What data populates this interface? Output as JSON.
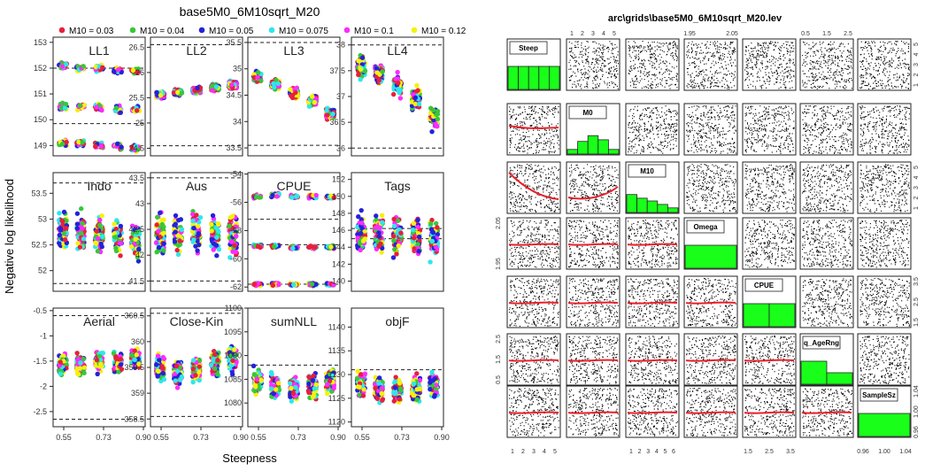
{
  "left": {
    "title": "base5M0_6M10sqrt_M20",
    "xlabel": "Steepness",
    "ylabel": "Negative log likelihood",
    "xticks": [
      "0.55",
      "0.73",
      "0.90"
    ],
    "legend": [
      {
        "label": "M10 = 0.03",
        "color": "#e8203a"
      },
      {
        "label": "M10 = 0.04",
        "color": "#37c837"
      },
      {
        "label": "M10 = 0.05",
        "color": "#2323d8"
      },
      {
        "label": "M10 = 0.075",
        "color": "#2ee6ee"
      },
      {
        "label": "M10 = 0.1",
        "color": "#ff2bff"
      },
      {
        "label": "M10 = 0.12",
        "color": "#f4f20d"
      }
    ]
  },
  "right": {
    "title": "arc\\grids\\base5M0_6M10sqrt_M20.lev",
    "variables": [
      "Steep",
      "M0",
      "M10",
      "Omega",
      "CPUE",
      "q_AgeRng",
      "SampleSz"
    ],
    "top_axis_labels": [
      {
        "col": 1,
        "ticks": [
          "1",
          "2",
          "3",
          "4",
          "5"
        ]
      },
      {
        "col": 3,
        "ticks": [
          "1.95",
          "2.05"
        ]
      },
      {
        "col": 5,
        "ticks": [
          "0.5",
          "1.5",
          "2.5"
        ]
      }
    ],
    "bottom_axis_labels": [
      {
        "col": 0,
        "ticks": [
          "1",
          "2",
          "3",
          "4",
          "5"
        ]
      },
      {
        "col": 2,
        "ticks": [
          "1",
          "2",
          "3",
          "4",
          "5",
          "6"
        ]
      },
      {
        "col": 4,
        "ticks": [
          "1.5",
          "2.5",
          "3.5"
        ]
      },
      {
        "col": 6,
        "ticks": [
          "0.96",
          "1.00",
          "1.04"
        ]
      }
    ],
    "left_axis_labels": [
      {
        "row": 3,
        "ticks": [
          "1.95",
          "2.05"
        ]
      },
      {
        "row": 5,
        "ticks": [
          "0.5",
          "1.5",
          "2.5"
        ]
      }
    ],
    "right_axis_labels": [
      {
        "row": 0,
        "ticks": [
          "1",
          "2",
          "3",
          "4",
          "5"
        ]
      },
      {
        "row": 2,
        "ticks": [
          "1",
          "2",
          "3",
          "4",
          "5"
        ]
      },
      {
        "row": 4,
        "ticks": [
          "1.5",
          "2.5",
          "3.5"
        ]
      },
      {
        "row": 6,
        "ticks": [
          "0.96",
          "1.00",
          "1.04"
        ]
      }
    ],
    "histograms": [
      {
        "var": "Steep",
        "values": [
          1,
          1,
          1,
          1,
          1
        ]
      },
      {
        "var": "M0",
        "values": [
          0.2,
          0.55,
          0.8,
          0.62,
          0.2
        ]
      },
      {
        "var": "M10",
        "values": [
          0.78,
          0.62,
          0.5,
          0.35,
          0.2
        ]
      },
      {
        "var": "Omega",
        "values": [
          1
        ]
      },
      {
        "var": "CPUE",
        "values": [
          1,
          1
        ]
      },
      {
        "var": "q_AgeRng",
        "values": [
          1,
          0.5
        ]
      },
      {
        "var": "SampleSz",
        "values": [
          1
        ]
      }
    ],
    "colors": {
      "hist": "#1aff1a",
      "trend": "#e8202a"
    }
  },
  "chart_data": [
    {
      "name": "LL1",
      "type": "scatter",
      "ylim": [
        148.6,
        153.2
      ],
      "yticks": [
        149,
        150,
        151,
        152,
        153
      ],
      "dashed": [
        149.85,
        152.0
      ],
      "clusters": [
        [
          152.1,
          150.5,
          149.1
        ],
        [
          152.0,
          150.5,
          149.1
        ],
        [
          152.0,
          150.5,
          149.0
        ],
        [
          151.9,
          150.4,
          149.0
        ],
        [
          151.9,
          150.4,
          148.9
        ]
      ],
      "spread": 0.28
    },
    {
      "name": "LL2",
      "type": "scatter",
      "ylim": [
        24.35,
        26.7
      ],
      "yticks": [
        24.5,
        25.0,
        25.5,
        26.0,
        26.5
      ],
      "dashed": [
        24.55,
        26.55
      ],
      "clusters": [
        [
          25.55
        ],
        [
          25.6
        ],
        [
          25.65
        ],
        [
          25.7
        ],
        [
          25.75
        ]
      ],
      "spread": 0.14
    },
    {
      "name": "LL3",
      "type": "scatter",
      "ylim": [
        33.35,
        35.6
      ],
      "yticks": [
        33.5,
        34.0,
        34.5,
        35.0,
        35.5
      ],
      "dashed": [
        33.55,
        35.5
      ],
      "clusters": [
        [
          34.85
        ],
        [
          34.7
        ],
        [
          34.55
        ],
        [
          34.4
        ],
        [
          34.15
        ]
      ],
      "spread": 0.22
    },
    {
      "name": "LL4",
      "type": "scatter",
      "ylim": [
        35.85,
        38.15
      ],
      "yticks": [
        36.0,
        36.5,
        37.0,
        37.5,
        38.0
      ],
      "dashed": [
        36.0,
        38.0
      ],
      "clusters": [
        [
          37.6
        ],
        [
          37.45
        ],
        [
          37.2
        ],
        [
          36.95
        ],
        [
          36.6
        ]
      ],
      "spread": 0.42
    },
    {
      "name": "Indo",
      "type": "scatter",
      "ylim": [
        51.6,
        53.9
      ],
      "yticks": [
        52.0,
        52.5,
        53.0,
        53.5
      ],
      "dashed": [
        51.75,
        53.7
      ],
      "clusters": [
        [
          52.8
        ],
        [
          52.75
        ],
        [
          52.7
        ],
        [
          52.65
        ],
        [
          52.6
        ]
      ],
      "spread": 0.75
    },
    {
      "name": "Aus",
      "type": "scatter",
      "ylim": [
        41.3,
        43.6
      ],
      "yticks": [
        41.5,
        42.0,
        42.5,
        43.0,
        43.5
      ],
      "dashed": [
        41.5,
        43.5
      ],
      "clusters": [
        [
          42.4
        ],
        [
          42.4
        ],
        [
          42.45
        ],
        [
          42.4
        ],
        [
          42.4
        ]
      ],
      "spread": 0.8
    },
    {
      "name": "CPUE",
      "type": "scatter",
      "ylim": [
        -62.3,
        -53.9
      ],
      "yticks": [
        -54,
        -56,
        -58,
        -60,
        -62
      ],
      "dashed": [
        -57.2,
        -59.0,
        -61.8
      ],
      "clusters": [
        [
          -55.6,
          -59.1,
          -61.8
        ],
        [
          -55.5,
          -59.1,
          -61.8
        ],
        [
          -55.6,
          -59.2,
          -61.8
        ],
        [
          -55.6,
          -59.2,
          -61.8
        ],
        [
          -55.6,
          -59.2,
          -61.8
        ]
      ],
      "spread": 0.25
    },
    {
      "name": "Tags",
      "type": "scatter",
      "ylim": [
        138.8,
        152.8
      ],
      "yticks": [
        140,
        142,
        144,
        146,
        148,
        150,
        152
      ],
      "dashed": [
        145.0,
        146.2
      ],
      "clusters": [
        [
          145.5
        ],
        [
          145.5
        ],
        [
          145.3
        ],
        [
          145.3
        ],
        [
          145.0
        ]
      ],
      "spread": 5.0
    },
    {
      "name": "Aerial",
      "type": "scatter",
      "ylim": [
        -2.8,
        -0.45
      ],
      "yticks": [
        -2.5,
        -2.0,
        -1.5,
        -1.0,
        -0.5
      ],
      "dashed": [
        -0.6,
        -2.65
      ],
      "clusters": [
        [
          -1.55
        ],
        [
          -1.6
        ],
        [
          -1.5
        ],
        [
          -1.55
        ],
        [
          -1.45
        ]
      ],
      "spread": 0.42
    },
    {
      "name": "Close-Kin",
      "type": "scatter",
      "ylim": [
        358.35,
        360.65
      ],
      "yticks": [
        358.5,
        359.0,
        359.5,
        360.0,
        360.5
      ],
      "dashed": [
        358.55,
        360.55
      ],
      "clusters": [
        [
          359.5
        ],
        [
          359.4
        ],
        [
          359.45
        ],
        [
          359.6
        ],
        [
          359.65
        ]
      ],
      "spread": 0.55
    },
    {
      "name": "sumNLL",
      "type": "scatter",
      "ylim": [
        1075,
        1100
      ],
      "yticks": [
        1080,
        1085,
        1090,
        1095,
        1100
      ],
      "dashed": [
        1088.0
      ],
      "clusters": [
        [
          1084.5
        ],
        [
          1083.5
        ],
        [
          1083.0
        ],
        [
          1083.5
        ],
        [
          1084.5
        ]
      ],
      "spread": 5.5
    },
    {
      "name": "objF",
      "type": "scatter",
      "ylim": [
        1119,
        1144
      ],
      "yticks": [
        1120,
        1125,
        1130,
        1135,
        1140
      ],
      "dashed": [
        1131.0
      ],
      "clusters": [
        [
          1128
        ],
        [
          1127
        ],
        [
          1126.5
        ],
        [
          1127
        ],
        [
          1128
        ]
      ],
      "spread": 5.5
    }
  ]
}
